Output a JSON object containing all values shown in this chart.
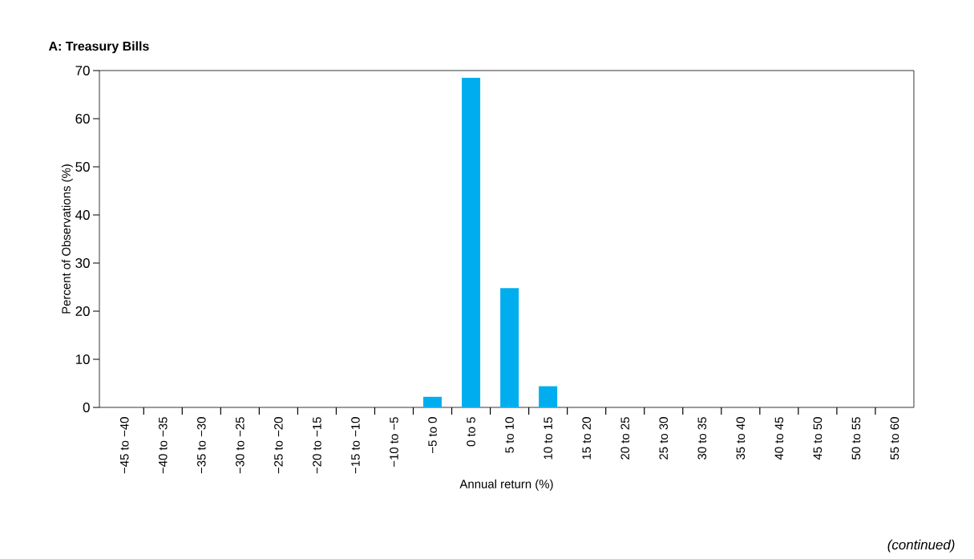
{
  "chart_data": {
    "type": "bar",
    "title": "A: Treasury Bills",
    "xlabel": "Annual return (%)",
    "ylabel": "Percent of Observations (%)",
    "categories": [
      "−45 to −40",
      "−40 to −35",
      "−35 to −30",
      "−30 to −25",
      "−25 to −20",
      "−20 to −15",
      "−15 to −10",
      "−10 to −5",
      "−5 to 0",
      "0 to 5",
      "5 to 10",
      "10 to 15",
      "15 to 20",
      "20 to 25",
      "25 to 30",
      "30 to 35",
      "35 to 40",
      "40 to 45",
      "45 to 50",
      "50 to 55",
      "55 to 60"
    ],
    "values": [
      0,
      0,
      0,
      0,
      0,
      0,
      0,
      0,
      2.2,
      68.5,
      24.8,
      4.4,
      0,
      0,
      0,
      0,
      0,
      0,
      0,
      0,
      0
    ],
    "color": "#00aeef",
    "ylim": [
      0,
      70
    ],
    "yticks": [
      0,
      10,
      20,
      30,
      40,
      50,
      60,
      70
    ],
    "annotations": [
      "(continued)"
    ]
  }
}
